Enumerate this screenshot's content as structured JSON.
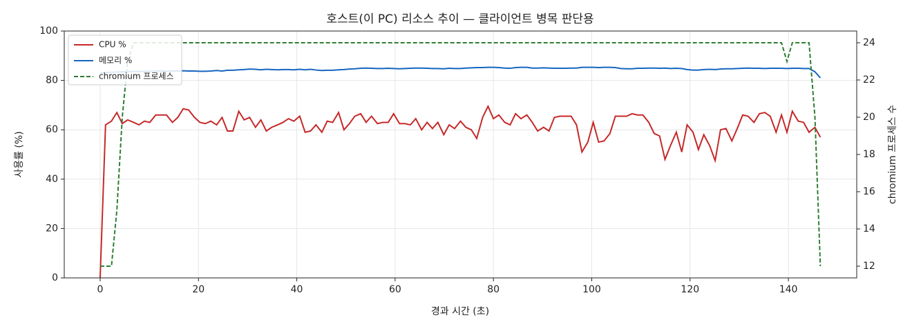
{
  "chart_data": {
    "type": "line",
    "title": "호스트(이 PC) 리소스 추이 — 클라이언트 병목 판단용",
    "xlabel": "경과 시간 (초)",
    "ylabel": "사용률 (%)",
    "y2label": "chromium 프로세스 수",
    "x": [
      0,
      1.1,
      2.3,
      3.4,
      4.5,
      5.6,
      6.8,
      7.9,
      9.0,
      10.1,
      11.3,
      12.4,
      13.5,
      14.7,
      15.8,
      16.9,
      18.0,
      19.2,
      20.3,
      21.4,
      22.5,
      23.7,
      24.8,
      25.9,
      27.0,
      28.2,
      29.3,
      30.4,
      31.6,
      32.7,
      33.8,
      34.9,
      36.1,
      37.2,
      38.3,
      39.4,
      40.6,
      41.7,
      42.8,
      43.9,
      45.1,
      46.2,
      47.3,
      48.5,
      49.6,
      50.7,
      51.8,
      53.0,
      54.1,
      55.2,
      56.4,
      57.5,
      58.6,
      59.7,
      60.9,
      62.0,
      63.1,
      64.2,
      65.4,
      66.5,
      67.6,
      68.7,
      69.9,
      71.0,
      72.1,
      73.3,
      74.4,
      75.5,
      76.6,
      77.8,
      78.9,
      80.0,
      81.1,
      82.3,
      83.4,
      84.5,
      85.6,
      86.8,
      87.9,
      89.0,
      90.2,
      91.3,
      92.4,
      93.5,
      94.7,
      95.8,
      96.9,
      98.0,
      99.2,
      100.3,
      101.4,
      102.5,
      103.7,
      104.8,
      105.9,
      107.1,
      108.2,
      109.3,
      110.4,
      111.6,
      112.7,
      113.8,
      114.9,
      116.1,
      117.2,
      118.3,
      119.4,
      120.6,
      121.7,
      122.8,
      124.0,
      125.1,
      126.2,
      127.3,
      128.5,
      129.6,
      130.7,
      131.8,
      133.0,
      134.1,
      135.2,
      136.3,
      137.5,
      138.6,
      139.7,
      140.8,
      142.0,
      143.1,
      144.2,
      145.4,
      146.5
    ],
    "series": [
      {
        "name": "CPU %",
        "color": "#c62828",
        "linestyle": "solid",
        "values": [
          0,
          62,
          63.5,
          67,
          62.5,
          64,
          63,
          62,
          63.5,
          63,
          66,
          66,
          66,
          63,
          65,
          68.5,
          68,
          65,
          63,
          62.5,
          63.5,
          62,
          65,
          59.5,
          59.5,
          67.5,
          64,
          65,
          61,
          64,
          59.5,
          61,
          62,
          63,
          64.5,
          63.5,
          65.5,
          59,
          59.5,
          62,
          59,
          63.5,
          63,
          67,
          60,
          62.5,
          65.5,
          66.5,
          63,
          65.5,
          62.5,
          63,
          63,
          66.5,
          62.5,
          62.5,
          62,
          64.5,
          60,
          63,
          60.5,
          63,
          58,
          62,
          60.5,
          63.5,
          61,
          60,
          56.5,
          65,
          69.5,
          64.5,
          66,
          63,
          62,
          66.5,
          64.5,
          66,
          63,
          59.5,
          61,
          59.5,
          65,
          65.5,
          65.5,
          65.5,
          62,
          51,
          55,
          63,
          55,
          55.5,
          58.5,
          65.5,
          65.5,
          65.5,
          66.5,
          66,
          66,
          63,
          58.5,
          57.5,
          48,
          54,
          59,
          51,
          62,
          59,
          52,
          58,
          53.5,
          47.5,
          60,
          60.5,
          55.5,
          60.5,
          66,
          65.5,
          63,
          66.5,
          67,
          65.5,
          59,
          66,
          59,
          67.5,
          63.5,
          63,
          59,
          61,
          57
        ]
      },
      {
        "name": "메모리 %",
        "color": "#1565c0",
        "linestyle": "solid",
        "values": [
          83,
          83.2,
          83.3,
          83.4,
          83.5,
          83.5,
          83.6,
          83.6,
          83.7,
          83.7,
          83.8,
          83.8,
          83.7,
          83.8,
          83.8,
          83.9,
          83.8,
          83.8,
          83.7,
          83.7,
          83.8,
          84,
          83.8,
          84.1,
          84.1,
          84.3,
          84.4,
          84.6,
          84.5,
          84.3,
          84.5,
          84.4,
          84.3,
          84.4,
          84.4,
          84.3,
          84.5,
          84.3,
          84.5,
          84.2,
          84,
          84.1,
          84.1,
          84.3,
          84.4,
          84.6,
          84.7,
          84.9,
          85,
          84.9,
          84.8,
          84.8,
          84.9,
          84.8,
          84.7,
          84.8,
          84.9,
          85,
          85,
          84.9,
          84.8,
          84.8,
          84.7,
          84.9,
          84.8,
          84.8,
          85,
          85.1,
          85.2,
          85.2,
          85.3,
          85.3,
          85.2,
          85,
          84.9,
          85.2,
          85.3,
          85.3,
          85,
          85,
          85.1,
          85,
          84.9,
          84.9,
          84.9,
          85,
          85,
          85.3,
          85.3,
          85.3,
          85.2,
          85.3,
          85.3,
          85.2,
          84.8,
          84.7,
          84.7,
          84.9,
          84.9,
          85,
          85,
          84.9,
          85,
          84.8,
          84.9,
          84.8,
          84.4,
          84.2,
          84.2,
          84.4,
          84.5,
          84.4,
          84.6,
          84.7,
          84.7,
          84.8,
          84.9,
          85,
          84.9,
          84.9,
          84.8,
          84.9,
          84.9,
          84.9,
          84.8,
          84.9,
          84.9,
          84.8,
          84.8,
          83.5,
          81
        ]
      },
      {
        "name": "chromium 프로세스",
        "color": "#2e7d32",
        "linestyle": "dashed",
        "axis": "y2",
        "values": [
          12,
          12,
          12,
          15,
          20,
          23,
          24,
          24,
          24,
          24,
          24,
          24,
          24,
          24,
          24,
          24,
          24,
          24,
          24,
          24,
          24,
          24,
          24,
          24,
          24,
          24,
          24,
          24,
          24,
          24,
          24,
          24,
          24,
          24,
          24,
          24,
          24,
          24,
          24,
          24,
          24,
          24,
          24,
          24,
          24,
          24,
          24,
          24,
          24,
          24,
          24,
          24,
          24,
          24,
          24,
          24,
          24,
          24,
          24,
          24,
          24,
          24,
          24,
          24,
          24,
          24,
          24,
          24,
          24,
          24,
          24,
          24,
          24,
          24,
          24,
          24,
          24,
          24,
          24,
          24,
          24,
          24,
          24,
          24,
          24,
          24,
          24,
          24,
          24,
          24,
          24,
          24,
          24,
          24,
          24,
          24,
          24,
          24,
          24,
          24,
          24,
          24,
          24,
          24,
          24,
          24,
          24,
          24,
          24,
          24,
          24,
          24,
          24,
          24,
          24,
          24,
          24,
          24,
          24,
          24,
          24,
          24,
          24,
          24,
          23,
          24,
          24,
          24,
          24,
          20,
          12
        ]
      }
    ],
    "xlim": [
      -7.3,
      153.9
    ],
    "xticks": [
      0,
      20,
      40,
      60,
      80,
      100,
      120,
      140
    ],
    "ylim": [
      0,
      100
    ],
    "yticks": [
      0,
      20,
      40,
      60,
      80,
      100
    ],
    "y2lim": [
      11.37,
      24.63
    ],
    "y2ticks": [
      12,
      14,
      16,
      18,
      20,
      22,
      24
    ],
    "grid": true,
    "legend": "upper left"
  }
}
